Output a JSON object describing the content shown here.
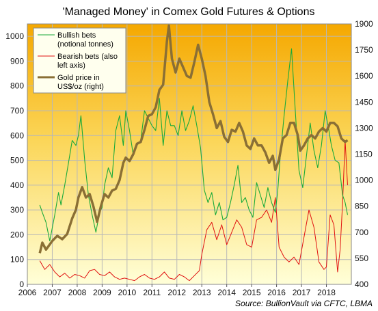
{
  "chart_data": {
    "type": "line",
    "title": "'Managed Money' in Comex Gold Futures & Options",
    "source": "Source: BullionVault via CFTC, LBMA",
    "x_ticks": [
      "2006",
      "2007",
      "2008",
      "2009",
      "2010",
      "2011",
      "2012",
      "2013",
      "2014",
      "2015",
      "2016",
      "2017",
      "2018"
    ],
    "xlim": [
      2006.0,
      2019.0
    ],
    "ylim_left": [
      0,
      1050
    ],
    "ylim_right": [
      400,
      1900
    ],
    "left_ticks": [
      "0",
      "100",
      "200",
      "300",
      "400",
      "500",
      "600",
      "700",
      "800",
      "900",
      "1000"
    ],
    "right_ticks": [
      "400",
      "550",
      "700",
      "850",
      "1000",
      "1150",
      "1300",
      "1450",
      "1600",
      "1750",
      "1900"
    ],
    "legend_position": "top-left",
    "colors": {
      "bullish": "#1aaa3a",
      "bearish": "#e01010",
      "gold": "#8a6f35",
      "bg_top": "#f5a800",
      "bg_bottom": "#ffffd8"
    },
    "series": [
      {
        "name": "Bullish bets\n(notional tonnes)",
        "axis": "left",
        "x": [
          2006.5,
          2006.6,
          2006.75,
          2006.9,
          2007.1,
          2007.25,
          2007.35,
          2007.5,
          2007.65,
          2007.8,
          2007.95,
          2008.05,
          2008.15,
          2008.3,
          2008.45,
          2008.6,
          2008.75,
          2008.9,
          2009.0,
          2009.1,
          2009.25,
          2009.4,
          2009.55,
          2009.7,
          2009.85,
          2009.95,
          2010.1,
          2010.25,
          2010.4,
          2010.55,
          2010.7,
          2010.85,
          2011.0,
          2011.15,
          2011.3,
          2011.45,
          2011.6,
          2011.75,
          2011.9,
          2012.05,
          2012.2,
          2012.35,
          2012.5,
          2012.65,
          2012.8,
          2012.95,
          2013.1,
          2013.25,
          2013.4,
          2013.55,
          2013.7,
          2013.85,
          2014.0,
          2014.15,
          2014.3,
          2014.45,
          2014.6,
          2014.75,
          2014.9,
          2015.05,
          2015.2,
          2015.35,
          2015.5,
          2015.65,
          2015.8,
          2015.95,
          2016.05,
          2016.15,
          2016.3,
          2016.45,
          2016.6,
          2016.75,
          2016.9,
          2017.05,
          2017.2,
          2017.35,
          2017.5,
          2017.65,
          2017.8,
          2017.95,
          2018.1,
          2018.2,
          2018.35,
          2018.5,
          2018.65,
          2018.75,
          2018.85
        ],
        "values": [
          320,
          290,
          250,
          175,
          280,
          370,
          320,
          400,
          490,
          580,
          560,
          600,
          680,
          500,
          360,
          280,
          210,
          290,
          310,
          400,
          470,
          430,
          620,
          680,
          560,
          700,
          620,
          520,
          560,
          580,
          700,
          670,
          640,
          620,
          750,
          560,
          700,
          640,
          640,
          600,
          700,
          620,
          660,
          720,
          640,
          550,
          380,
          330,
          370,
          280,
          330,
          260,
          270,
          330,
          400,
          480,
          330,
          350,
          300,
          270,
          410,
          360,
          310,
          390,
          330,
          290,
          380,
          520,
          680,
          820,
          950,
          700,
          460,
          390,
          520,
          650,
          540,
          470,
          560,
          700,
          620,
          560,
          500,
          490,
          360,
          330,
          280
        ]
      },
      {
        "name": "Bearish bets (also\nleft axis)",
        "axis": "left",
        "x": [
          2006.5,
          2006.7,
          2006.9,
          2007.1,
          2007.3,
          2007.5,
          2007.7,
          2007.9,
          2008.1,
          2008.3,
          2008.5,
          2008.7,
          2008.9,
          2009.1,
          2009.3,
          2009.5,
          2009.7,
          2009.9,
          2010.1,
          2010.3,
          2010.5,
          2010.7,
          2010.9,
          2011.1,
          2011.3,
          2011.5,
          2011.7,
          2011.9,
          2012.1,
          2012.3,
          2012.5,
          2012.7,
          2012.9,
          2013.0,
          2013.2,
          2013.4,
          2013.6,
          2013.8,
          2014.0,
          2014.2,
          2014.4,
          2014.6,
          2014.8,
          2015.0,
          2015.2,
          2015.4,
          2015.6,
          2015.8,
          2015.95,
          2016.1,
          2016.3,
          2016.5,
          2016.7,
          2016.9,
          2017.1,
          2017.3,
          2017.5,
          2017.7,
          2017.9,
          2018.0,
          2018.15,
          2018.3,
          2018.45,
          2018.55,
          2018.65,
          2018.75,
          2018.85
        ],
        "values": [
          95,
          60,
          80,
          50,
          30,
          45,
          25,
          40,
          35,
          25,
          55,
          60,
          40,
          35,
          50,
          30,
          20,
          25,
          20,
          15,
          30,
          40,
          25,
          20,
          30,
          50,
          25,
          20,
          40,
          30,
          15,
          35,
          55,
          120,
          220,
          250,
          180,
          240,
          160,
          210,
          260,
          230,
          160,
          150,
          260,
          270,
          300,
          250,
          350,
          150,
          110,
          90,
          110,
          80,
          190,
          300,
          230,
          90,
          60,
          70,
          280,
          240,
          50,
          140,
          330,
          580,
          400
        ]
      },
      {
        "name": "Gold price in\nUS$/oz (right)",
        "axis": "right",
        "x": [
          2006.5,
          2006.6,
          2006.75,
          2006.9,
          2007.0,
          2007.2,
          2007.4,
          2007.6,
          2007.8,
          2007.95,
          2008.05,
          2008.2,
          2008.35,
          2008.5,
          2008.65,
          2008.8,
          2008.95,
          2009.1,
          2009.25,
          2009.4,
          2009.55,
          2009.7,
          2009.85,
          2009.95,
          2010.1,
          2010.25,
          2010.4,
          2010.55,
          2010.7,
          2010.85,
          2011.0,
          2011.15,
          2011.3,
          2011.45,
          2011.6,
          2011.68,
          2011.8,
          2011.95,
          2012.1,
          2012.25,
          2012.4,
          2012.55,
          2012.7,
          2012.85,
          2013.0,
          2013.15,
          2013.3,
          2013.45,
          2013.6,
          2013.75,
          2013.9,
          2014.05,
          2014.2,
          2014.35,
          2014.5,
          2014.65,
          2014.8,
          2014.95,
          2015.1,
          2015.25,
          2015.4,
          2015.55,
          2015.7,
          2015.85,
          2015.95,
          2016.1,
          2016.25,
          2016.4,
          2016.55,
          2016.7,
          2016.85,
          2016.95,
          2017.1,
          2017.25,
          2017.4,
          2017.55,
          2017.7,
          2017.85,
          2018.0,
          2018.15,
          2018.3,
          2018.45,
          2018.6,
          2018.75,
          2018.85
        ],
        "values": [
          580,
          640,
          600,
          630,
          650,
          680,
          660,
          690,
          780,
          830,
          900,
          960,
          900,
          920,
          850,
          760,
          850,
          920,
          900,
          940,
          950,
          1000,
          1100,
          1130,
          1110,
          1150,
          1210,
          1220,
          1290,
          1370,
          1380,
          1420,
          1520,
          1550,
          1800,
          1890,
          1700,
          1620,
          1700,
          1650,
          1600,
          1590,
          1680,
          1780,
          1700,
          1600,
          1450,
          1380,
          1300,
          1340,
          1250,
          1220,
          1290,
          1280,
          1330,
          1280,
          1200,
          1180,
          1240,
          1200,
          1200,
          1160,
          1100,
          1140,
          1060,
          1120,
          1240,
          1260,
          1330,
          1330,
          1260,
          1170,
          1200,
          1240,
          1260,
          1240,
          1280,
          1300,
          1280,
          1330,
          1330,
          1310,
          1240,
          1220,
          1230
        ]
      }
    ]
  }
}
